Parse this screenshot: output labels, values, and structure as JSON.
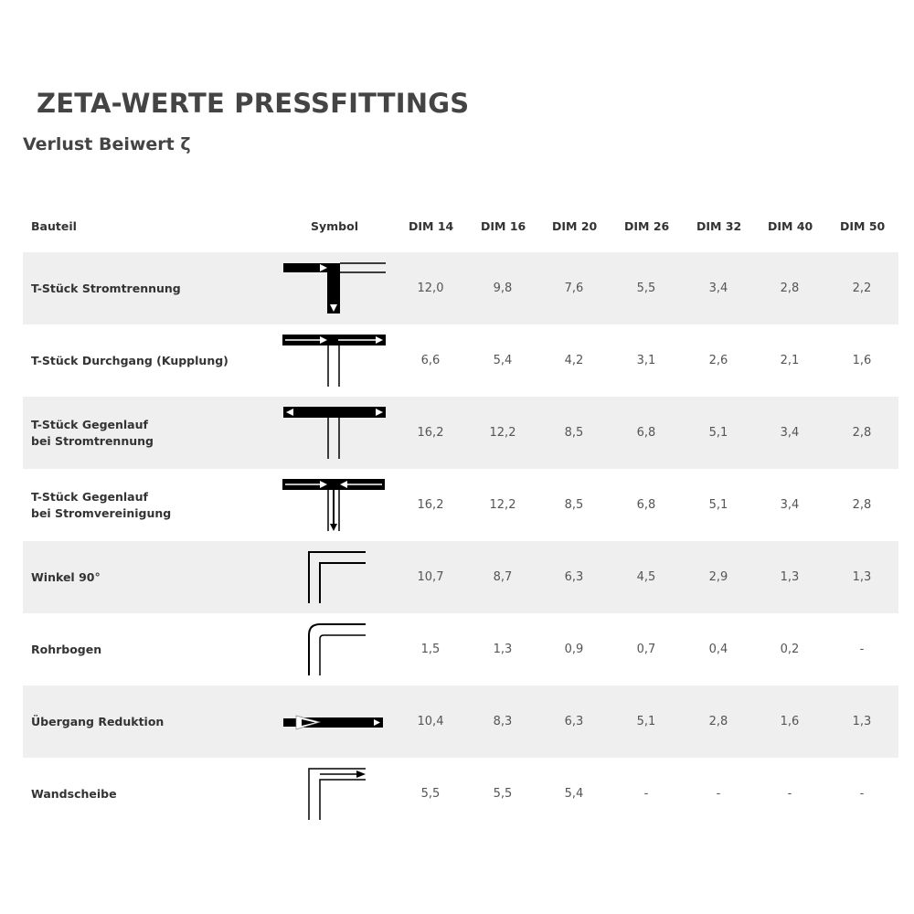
{
  "title": "ZETA-WERTE PRESSFITTINGS",
  "subtitle": "Verlust Beiwert ζ",
  "table": {
    "headers": [
      "Bauteil",
      "Symbol",
      "DIM 14",
      "DIM 16",
      "DIM 20",
      "DIM 26",
      "DIM 32",
      "DIM 40",
      "DIM 50"
    ],
    "rows": [
      {
        "name": "T-Stück Stromtrennung",
        "symbol": "tee-flow-split-icon",
        "values": [
          "12,0",
          "9,8",
          "7,6",
          "5,5",
          "3,4",
          "2,8",
          "2,2"
        ]
      },
      {
        "name": "T-Stück Durchgang (Kupplung)",
        "symbol": "tee-straight-through-icon",
        "values": [
          "6,6",
          "5,4",
          "4,2",
          "3,1",
          "2,6",
          "2,1",
          "1,6"
        ]
      },
      {
        "name": "T-Stück Gegenlauf\nbei Stromtrennung",
        "symbol": "tee-counterflow-split-icon",
        "values": [
          "16,2",
          "12,2",
          "8,5",
          "6,8",
          "5,1",
          "3,4",
          "2,8"
        ]
      },
      {
        "name": "T-Stück Gegenlauf\nbei Stromvereinigung",
        "symbol": "tee-counterflow-merge-icon",
        "values": [
          "16,2",
          "12,2",
          "8,5",
          "6,8",
          "5,1",
          "3,4",
          "2,8"
        ]
      },
      {
        "name": "Winkel 90°",
        "symbol": "elbow-90-icon",
        "values": [
          "10,7",
          "8,7",
          "6,3",
          "4,5",
          "2,9",
          "1,3",
          "1,3"
        ]
      },
      {
        "name": "Rohrbogen",
        "symbol": "pipe-bend-icon",
        "values": [
          "1,5",
          "1,3",
          "0,9",
          "0,7",
          "0,4",
          "0,2",
          "-"
        ]
      },
      {
        "name": "Übergang Reduktion",
        "symbol": "reducer-icon",
        "values": [
          "10,4",
          "8,3",
          "6,3",
          "5,1",
          "2,8",
          "1,6",
          "1,3"
        ]
      },
      {
        "name": "Wandscheibe",
        "symbol": "wall-plate-icon",
        "values": [
          "5,5",
          "5,5",
          "5,4",
          "-",
          "-",
          "-",
          "-"
        ]
      }
    ]
  },
  "colors": {
    "row_stripe": "#efefef",
    "text": "#444444"
  }
}
